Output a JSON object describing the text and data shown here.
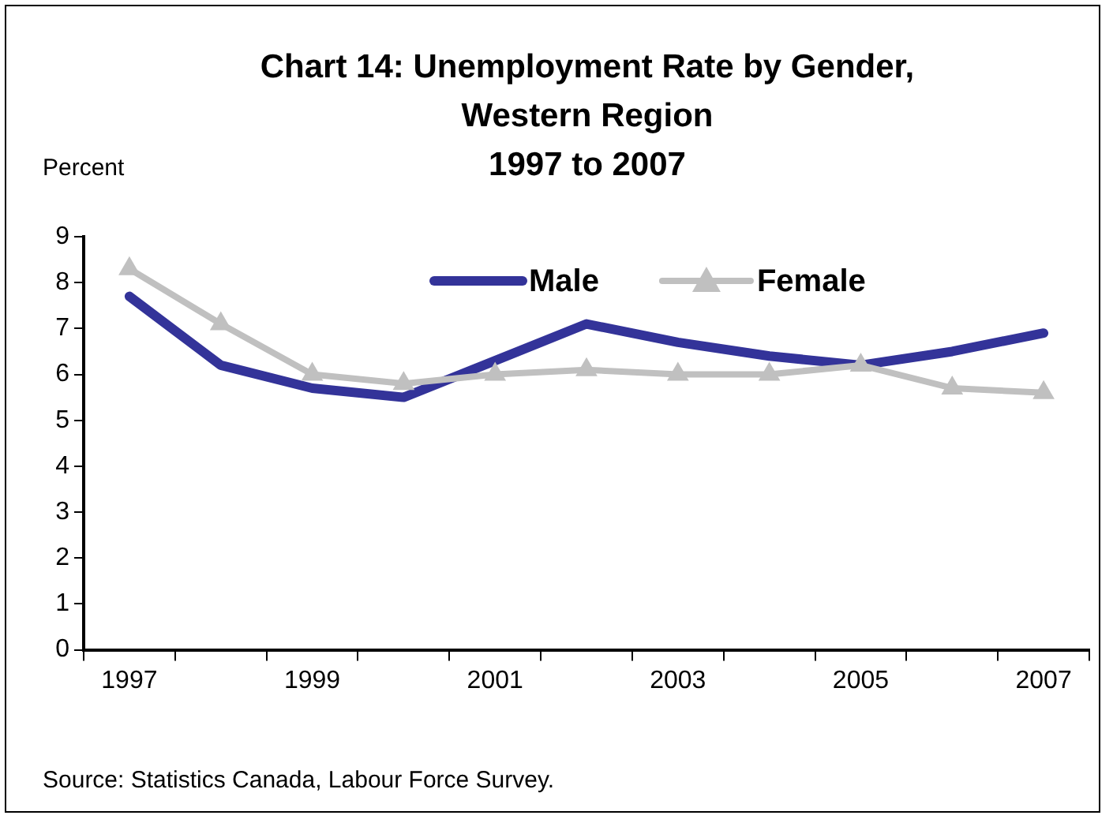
{
  "chart_data": {
    "type": "line",
    "title": "Chart 14: Unemployment Rate by Gender,\nWestern Region\n1997 to 2007",
    "ylabel": "Percent",
    "categories": [
      "1997",
      null,
      "1999",
      null,
      "2001",
      null,
      "2003",
      null,
      "2005",
      null,
      "2007"
    ],
    "series": [
      {
        "name": "Male",
        "color": "#333399",
        "marker": "none",
        "values": [
          7.7,
          6.2,
          5.7,
          5.5,
          6.3,
          7.1,
          6.7,
          6.4,
          6.2,
          6.5,
          6.9
        ]
      },
      {
        "name": "Female",
        "color": "#c0c0c0",
        "marker": "triangle",
        "values": [
          8.3,
          7.1,
          6.0,
          5.8,
          6.0,
          6.1,
          6.0,
          6.0,
          6.2,
          5.7,
          5.6
        ]
      }
    ],
    "ylim": [
      0,
      9
    ],
    "yticks": [
      0,
      1,
      2,
      3,
      4,
      5,
      6,
      7,
      8,
      9
    ],
    "grid": false,
    "legend": "top right",
    "annotations": [
      "Source:  Statistics Canada, Labour Force Survey."
    ]
  }
}
